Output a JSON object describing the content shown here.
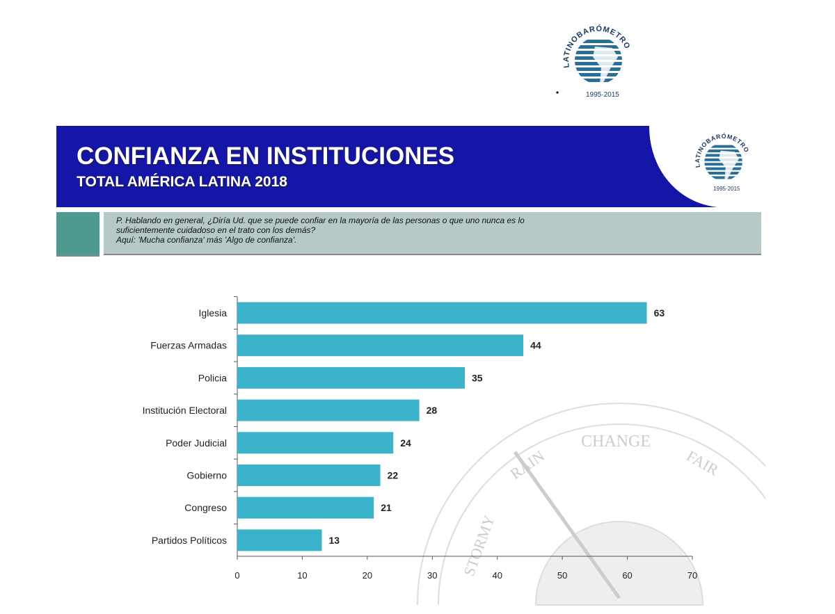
{
  "header": {
    "title": "CONFIANZA EN INSTITUCIONES",
    "subtitle": "TOTAL AMÉRICA LATINA 2018",
    "banner_color": "#1515a8"
  },
  "question": {
    "line1": "P. Hablando en general, ¿Diría Ud. que se puede confiar en la mayoría de las personas o que uno nunca es lo",
    "line2": "suficientemente cuidadoso en el trato con los demás?",
    "line3": "Aquí: 'Mucha confianza' más 'Algo de confianza'."
  },
  "logo": {
    "text": "LATINOBARÓMETRO",
    "years": "1995 · 2015"
  },
  "watermark": {
    "words": [
      "CHANGE",
      "RAIN",
      "FAIR",
      "STORMY"
    ]
  },
  "chart_data": {
    "type": "bar",
    "orientation": "horizontal",
    "categories": [
      "Iglesia",
      "Fuerzas Armadas",
      "Policia",
      "Institución Electoral",
      "Poder Judicial",
      "Gobierno",
      "Congreso",
      "Partidos Políticos"
    ],
    "values": [
      63,
      44,
      35,
      28,
      24,
      22,
      21,
      13
    ],
    "xlim": [
      0,
      70
    ],
    "xticks": [
      0,
      10,
      20,
      30,
      40,
      50,
      60,
      70
    ],
    "grid": false,
    "bar_color": "#3ab3cb",
    "data_labels": true
  }
}
